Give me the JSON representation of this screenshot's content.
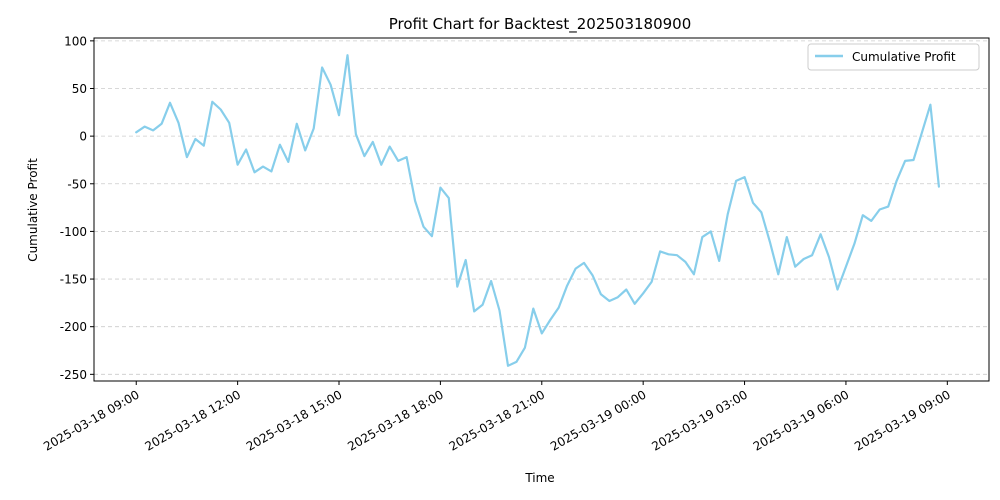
{
  "chart_data": {
    "type": "line",
    "title": "Profit Chart for Backtest_202503180900",
    "xlabel": "Time",
    "ylabel": "Cumulative Profit",
    "ylim": [
      -257,
      103
    ],
    "xlim": [
      "2025-03-18 07:45",
      "2025-03-19 10:14"
    ],
    "y_ticks": [
      -250,
      -200,
      -150,
      -100,
      -50,
      0,
      50,
      100
    ],
    "x_ticks": [
      "2025-03-18 09:00",
      "2025-03-18 12:00",
      "2025-03-18 15:00",
      "2025-03-18 18:00",
      "2025-03-18 21:00",
      "2025-03-19 00:00",
      "2025-03-19 03:00",
      "2025-03-19 06:00",
      "2025-03-19 09:00"
    ],
    "grid": "y-dashed",
    "legend": "top-right",
    "colors": {
      "line": "#87CEEB",
      "grid": "#cccccc"
    },
    "series": [
      {
        "name": "Cumulative Profit",
        "x": [
          "2025-03-18 09:00",
          "2025-03-18 09:15",
          "2025-03-18 09:30",
          "2025-03-18 09:45",
          "2025-03-18 10:00",
          "2025-03-18 10:15",
          "2025-03-18 10:30",
          "2025-03-18 10:45",
          "2025-03-18 11:00",
          "2025-03-18 11:15",
          "2025-03-18 11:30",
          "2025-03-18 11:45",
          "2025-03-18 12:00",
          "2025-03-18 12:15",
          "2025-03-18 12:30",
          "2025-03-18 12:45",
          "2025-03-18 13:00",
          "2025-03-18 13:15",
          "2025-03-18 13:30",
          "2025-03-18 13:45",
          "2025-03-18 14:00",
          "2025-03-18 14:15",
          "2025-03-18 14:30",
          "2025-03-18 14:45",
          "2025-03-18 15:00",
          "2025-03-18 15:15",
          "2025-03-18 15:30",
          "2025-03-18 15:45",
          "2025-03-18 16:00",
          "2025-03-18 16:15",
          "2025-03-18 16:30",
          "2025-03-18 16:45",
          "2025-03-18 17:00",
          "2025-03-18 17:15",
          "2025-03-18 17:30",
          "2025-03-18 17:45",
          "2025-03-18 18:00",
          "2025-03-18 18:15",
          "2025-03-18 18:30",
          "2025-03-18 18:45",
          "2025-03-18 19:00",
          "2025-03-18 19:15",
          "2025-03-18 19:30",
          "2025-03-18 19:45",
          "2025-03-18 20:00",
          "2025-03-18 20:15",
          "2025-03-18 20:30",
          "2025-03-18 20:45",
          "2025-03-18 21:00",
          "2025-03-18 21:15",
          "2025-03-18 21:30",
          "2025-03-18 21:45",
          "2025-03-18 22:00",
          "2025-03-18 22:15",
          "2025-03-18 22:30",
          "2025-03-18 22:45",
          "2025-03-18 23:00",
          "2025-03-18 23:15",
          "2025-03-18 23:30",
          "2025-03-18 23:45",
          "2025-03-19 00:00",
          "2025-03-19 00:15",
          "2025-03-19 00:30",
          "2025-03-19 00:45",
          "2025-03-19 01:00",
          "2025-03-19 01:15",
          "2025-03-19 01:30",
          "2025-03-19 01:45",
          "2025-03-19 02:00",
          "2025-03-19 02:15",
          "2025-03-19 02:30",
          "2025-03-19 02:45",
          "2025-03-19 03:00",
          "2025-03-19 03:15",
          "2025-03-19 03:30",
          "2025-03-19 03:45",
          "2025-03-19 04:00",
          "2025-03-19 04:15",
          "2025-03-19 04:30",
          "2025-03-19 04:45",
          "2025-03-19 05:00",
          "2025-03-19 05:15",
          "2025-03-19 05:30",
          "2025-03-19 05:45",
          "2025-03-19 06:00",
          "2025-03-19 06:15",
          "2025-03-19 06:30",
          "2025-03-19 06:45",
          "2025-03-19 07:00",
          "2025-03-19 07:15",
          "2025-03-19 07:30",
          "2025-03-19 07:45",
          "2025-03-19 08:00",
          "2025-03-19 08:15",
          "2025-03-19 08:30",
          "2025-03-19 08:45"
        ],
        "values": [
          4,
          10,
          6,
          13,
          35,
          14,
          -22,
          -3,
          -10,
          36,
          28,
          14,
          -30,
          -14,
          -38,
          -32,
          -37,
          -9,
          -27,
          13,
          -15,
          8,
          72,
          54,
          22,
          85,
          2,
          -21,
          -6,
          -30,
          -11,
          -26,
          -22,
          -68,
          -95,
          -105,
          -54,
          -65,
          -158,
          -130,
          -184,
          -177,
          -152,
          -183,
          -241,
          -237,
          -222,
          -181,
          -207,
          -193,
          -180,
          -157,
          -139,
          -133,
          -146,
          -166,
          -173,
          -169,
          -161,
          -176,
          -165,
          -153,
          -121,
          -124,
          -125,
          -132,
          -145,
          -106,
          -100,
          -131,
          -82,
          -47,
          -43,
          -70,
          -80,
          -111,
          -145,
          -106,
          -137,
          -129,
          -125,
          -103,
          -127,
          -161,
          -137,
          -113,
          -83,
          -89,
          -77,
          -74,
          -47,
          -26,
          -25,
          4,
          33,
          -53
        ]
      }
    ]
  }
}
